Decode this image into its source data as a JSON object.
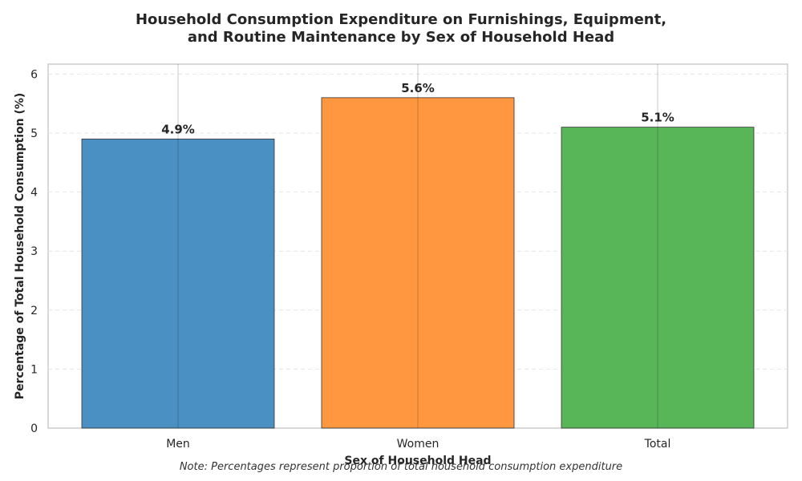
{
  "chart_data": {
    "type": "bar",
    "title_lines": [
      "Household Consumption Expenditure on Furnishings, Equipment,",
      "and Routine Maintenance by Sex of Household Head"
    ],
    "xlabel": "Sex of Household Head",
    "ylabel": "Percentage of Total Household Consumption (%)",
    "categories": [
      "Men",
      "Women",
      "Total"
    ],
    "values": [
      4.9,
      5.6,
      5.1
    ],
    "value_labels": [
      "4.9%",
      "5.6%",
      "5.1%"
    ],
    "colors": [
      "#4a90c2",
      "#ff9640",
      "#58b558"
    ],
    "ylim": [
      0,
      6.15
    ],
    "yticks": [
      0,
      1,
      2,
      3,
      4,
      5,
      6
    ],
    "grid": true,
    "note": "Note: Percentages represent proportion of total household consumption expenditure"
  }
}
